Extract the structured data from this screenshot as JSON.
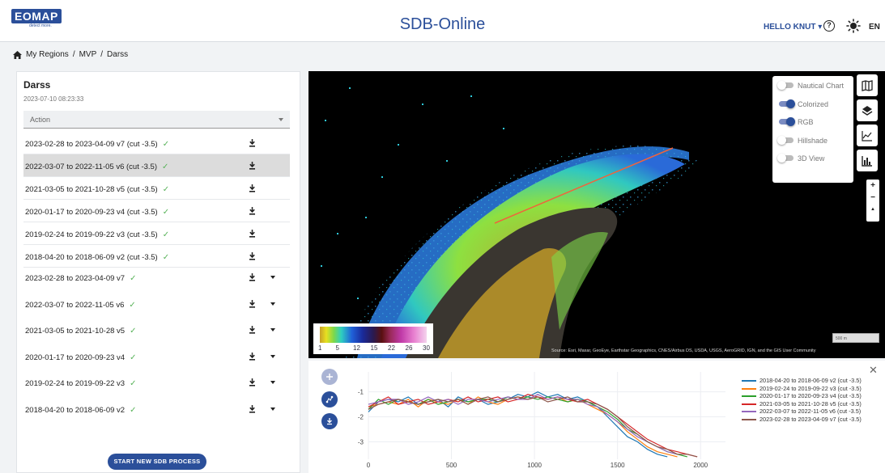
{
  "header": {
    "logo_text": "EOMAP",
    "logo_tagline": "detect more.",
    "title": "SDB-Online",
    "user_menu": "HELLO KNUT ▾",
    "language": "EN"
  },
  "breadcrumb": [
    "My Regions",
    "/",
    "MVP",
    "/",
    "Darss"
  ],
  "region": {
    "name": "Darss",
    "timestamp": "2023-07-10 08:23:33",
    "action_placeholder": "Action"
  },
  "results_cut": [
    {
      "label": "2023-02-28 to 2023-04-09 v7 (cut -3.5)",
      "selected": false
    },
    {
      "label": "2022-03-07 to 2022-11-05 v6 (cut -3.5)",
      "selected": true
    },
    {
      "label": "2021-03-05 to 2021-10-28 v5 (cut -3.5)",
      "selected": false
    },
    {
      "label": "2020-01-17 to 2020-09-23 v4 (cut -3.5)",
      "selected": false
    },
    {
      "label": "2019-02-24 to 2019-09-22 v3 (cut -3.5)",
      "selected": false
    },
    {
      "label": "2018-04-20 to 2018-06-09 v2 (cut -3.5)",
      "selected": false
    }
  ],
  "results_full": [
    {
      "label": "2023-02-28 to 2023-04-09 v7"
    },
    {
      "label": "2022-03-07 to 2022-11-05 v6"
    },
    {
      "label": "2021-03-05 to 2021-10-28 v5"
    },
    {
      "label": "2020-01-17 to 2020-09-23 v4"
    },
    {
      "label": "2019-02-24 to 2019-09-22 v3"
    },
    {
      "label": "2018-04-20 to 2018-06-09 v2"
    }
  ],
  "check_mark": "✓",
  "start_button": "START NEW SDB PROCESS",
  "map": {
    "layers": [
      {
        "label": "Nautical Chart",
        "on": false
      },
      {
        "label": "Colorized",
        "on": true
      },
      {
        "label": "RGB",
        "on": true
      },
      {
        "label": "Hillshade",
        "on": false
      },
      {
        "label": "3D View",
        "on": false
      }
    ],
    "tools": [
      "map-icon",
      "layers-icon",
      "line-chart-icon",
      "bar-chart-icon"
    ],
    "zoom_in": "+",
    "zoom_out": "−",
    "compass": "▲",
    "legend_ticks": [
      "1",
      "5",
      "12",
      "15",
      "22",
      "26",
      "30"
    ],
    "scale_label": "500 m",
    "attribution": "Source: Esri, Maxar, GeoEye, Earthstar Geographics, CNES/Airbus DS, USDA, USGS, AeroGRID, IGN, and the GIS User Community"
  },
  "chart_data": {
    "type": "line",
    "x_ticks": [
      0,
      500,
      1000,
      1500,
      2000
    ],
    "y_ticks": [
      -1,
      -2,
      -3
    ],
    "xlim": [
      0,
      2150
    ],
    "ylim": [
      -3.7,
      -0.2
    ],
    "series": [
      {
        "name": "2018-04-20 to 2018-06-09 v2 (cut -3.5)",
        "color": "#1f77b4",
        "x": [
          0,
          60,
          120,
          180,
          240,
          300,
          360,
          420,
          480,
          540,
          600,
          660,
          720,
          780,
          840,
          900,
          960,
          1020,
          1080,
          1140,
          1200,
          1260,
          1320,
          1380,
          1440,
          1500,
          1560,
          1620,
          1680,
          1740,
          1800
        ],
        "y": [
          -1.8,
          -1.4,
          -1.3,
          -1.4,
          -1.2,
          -1.5,
          -1.4,
          -1.3,
          -1.6,
          -1.2,
          -1.4,
          -1.3,
          -1.5,
          -1.4,
          -1.3,
          -1.1,
          -1.2,
          -1.0,
          -1.2,
          -1.1,
          -1.3,
          -1.2,
          -1.4,
          -1.6,
          -2.0,
          -2.4,
          -2.8,
          -3.0,
          -3.3,
          -3.5,
          -3.6
        ]
      },
      {
        "name": "2019-02-24 to 2019-09-22 v3 (cut -3.5)",
        "color": "#ff7f0e",
        "x": [
          0,
          60,
          120,
          180,
          240,
          300,
          360,
          420,
          480,
          540,
          600,
          660,
          720,
          780,
          840,
          900,
          960,
          1020,
          1080,
          1140,
          1200,
          1260,
          1320,
          1380,
          1440,
          1500,
          1560,
          1620,
          1680,
          1740,
          1800,
          1860
        ],
        "y": [
          -1.6,
          -1.5,
          -1.4,
          -1.5,
          -1.3,
          -1.6,
          -1.3,
          -1.4,
          -1.5,
          -1.3,
          -1.5,
          -1.2,
          -1.4,
          -1.5,
          -1.3,
          -1.2,
          -1.3,
          -1.2,
          -1.3,
          -1.2,
          -1.4,
          -1.3,
          -1.5,
          -1.7,
          -1.9,
          -2.2,
          -2.6,
          -2.9,
          -3.2,
          -3.4,
          -3.5,
          -3.6
        ]
      },
      {
        "name": "2020-01-17 to 2020-09-23 v4 (cut -3.5)",
        "color": "#2ca02c",
        "x": [
          0,
          60,
          120,
          180,
          240,
          300,
          360,
          420,
          480,
          540,
          600,
          660,
          720,
          780,
          840,
          900,
          960,
          1020,
          1080,
          1140,
          1200,
          1260,
          1320,
          1380,
          1440,
          1500,
          1560,
          1620,
          1680,
          1740,
          1800,
          1860,
          1920
        ],
        "y": [
          -1.7,
          -1.3,
          -1.5,
          -1.3,
          -1.4,
          -1.5,
          -1.3,
          -1.5,
          -1.4,
          -1.3,
          -1.4,
          -1.3,
          -1.3,
          -1.4,
          -1.2,
          -1.3,
          -1.2,
          -1.3,
          -1.2,
          -1.3,
          -1.4,
          -1.3,
          -1.4,
          -1.6,
          -1.8,
          -2.1,
          -2.5,
          -2.7,
          -3.0,
          -3.2,
          -3.4,
          -3.5,
          -3.6
        ]
      },
      {
        "name": "2021-03-05 to 2021-10-28 v5 (cut -3.5)",
        "color": "#d62728",
        "x": [
          0,
          60,
          120,
          180,
          240,
          300,
          360,
          420,
          480,
          540,
          600,
          660,
          720,
          780,
          840,
          900,
          960,
          1020,
          1080,
          1140,
          1200,
          1260,
          1320,
          1380,
          1440,
          1500,
          1560,
          1620,
          1680,
          1740,
          1800,
          1860,
          1920,
          1980
        ],
        "y": [
          -1.6,
          -1.4,
          -1.2,
          -1.5,
          -1.4,
          -1.3,
          -1.5,
          -1.4,
          -1.3,
          -1.4,
          -1.2,
          -1.4,
          -1.3,
          -1.2,
          -1.4,
          -1.3,
          -1.1,
          -1.2,
          -1.3,
          -1.2,
          -1.3,
          -1.4,
          -1.3,
          -1.5,
          -1.7,
          -2.0,
          -2.3,
          -2.6,
          -2.9,
          -3.1,
          -3.3,
          -3.4,
          -3.5,
          -3.6
        ]
      },
      {
        "name": "2022-03-07 to 2022-11-05 v6 (cut -3.5)",
        "color": "#9467bd",
        "x": [
          0,
          60,
          120,
          180,
          240,
          300,
          360,
          420,
          480,
          540,
          600,
          660,
          720,
          780,
          840,
          900,
          960,
          1020,
          1080,
          1140,
          1200,
          1260,
          1320,
          1380,
          1440,
          1500,
          1560,
          1620,
          1680,
          1740,
          1800,
          1860
        ],
        "y": [
          -1.5,
          -1.4,
          -1.3,
          -1.3,
          -1.5,
          -1.4,
          -1.2,
          -1.4,
          -1.3,
          -1.5,
          -1.3,
          -1.3,
          -1.4,
          -1.3,
          -1.2,
          -1.3,
          -1.3,
          -1.1,
          -1.3,
          -1.2,
          -1.3,
          -1.3,
          -1.5,
          -1.6,
          -1.9,
          -2.2,
          -2.5,
          -2.8,
          -3.0,
          -3.2,
          -3.4,
          -3.5
        ]
      },
      {
        "name": "2023-02-28 to 2023-04-09 v7 (cut -3.5)",
        "color": "#8c564b",
        "x": [
          0,
          60,
          120,
          180,
          240,
          300,
          360,
          420,
          480,
          540,
          600,
          660,
          720,
          780,
          840,
          900,
          960,
          1020,
          1080,
          1140,
          1200,
          1260,
          1320,
          1380,
          1440,
          1500,
          1560,
          1620,
          1680,
          1740,
          1800,
          1860,
          1920,
          1980
        ],
        "y": [
          -1.7,
          -1.5,
          -1.4,
          -1.3,
          -1.4,
          -1.5,
          -1.4,
          -1.3,
          -1.4,
          -1.3,
          -1.5,
          -1.3,
          -1.2,
          -1.4,
          -1.3,
          -1.2,
          -1.3,
          -1.2,
          -1.4,
          -1.3,
          -1.2,
          -1.4,
          -1.4,
          -1.5,
          -1.7,
          -2.0,
          -2.4,
          -2.7,
          -3.0,
          -3.2,
          -3.3,
          -3.5,
          -3.5,
          -3.6
        ]
      }
    ]
  },
  "colors": {
    "brand": "#2b4f9a",
    "check": "#59b35a",
    "selected_row": "#dcdcdc"
  }
}
